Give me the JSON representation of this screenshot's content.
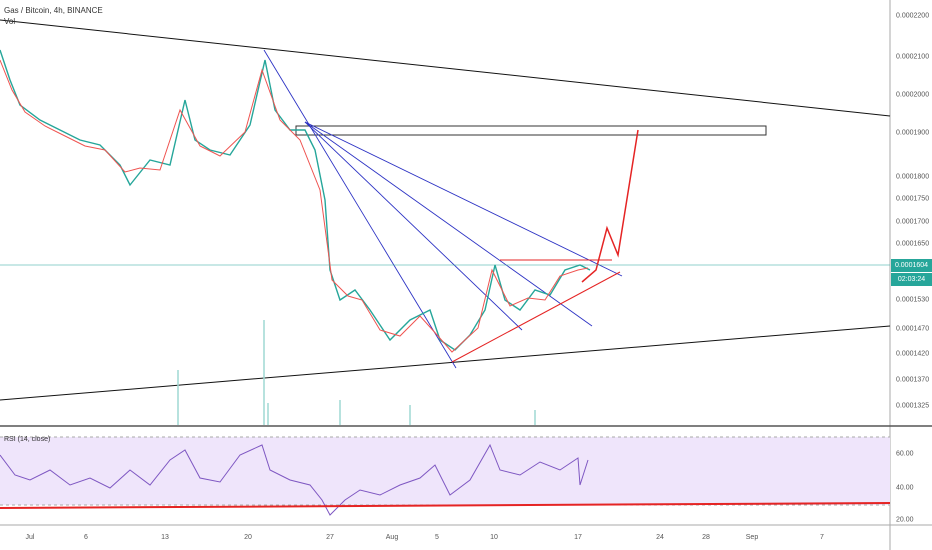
{
  "header": {
    "symbol": "Gas / Bitcoin, 4h, BINANCE",
    "volume": "Vol"
  },
  "price_axis": {
    "labels": [
      "0.0002200",
      "0.0002100",
      "0.0002000",
      "0.0001900",
      "0.0001800",
      "0.0001750",
      "0.0001700",
      "0.0001650",
      "0.0001530",
      "0.0001470",
      "0.0001420",
      "0.0001370",
      "0.0001325"
    ],
    "current_price": "0.0001604",
    "countdown": "02:03:24"
  },
  "time_axis": {
    "labels": [
      "Jul",
      "6",
      "13",
      "20",
      "27",
      "Aug",
      "5",
      "10",
      "17",
      "24",
      "28",
      "Sep",
      "7"
    ]
  },
  "rsi": {
    "title": "RSI (14, close)",
    "labels": [
      "60.00",
      "40.00",
      "20.00"
    ]
  }
}
